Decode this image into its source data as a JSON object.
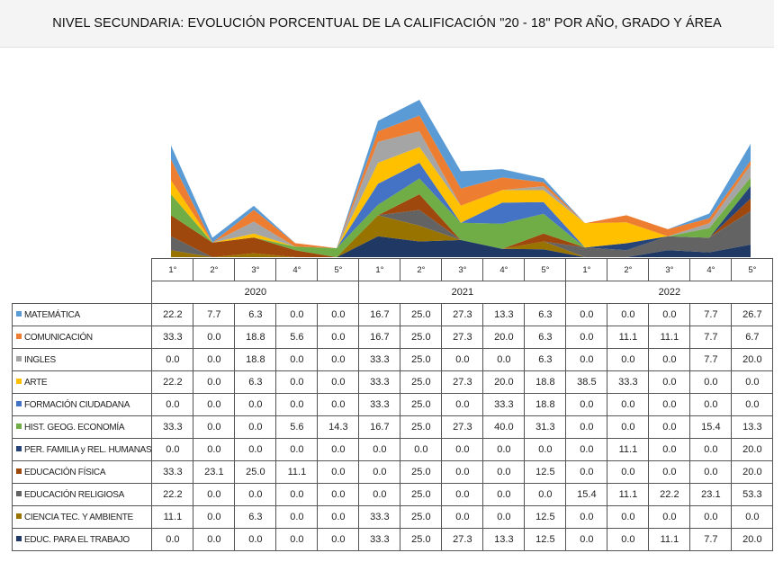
{
  "title": "NIVEL SECUNDARIA: EVOLUCIÓN PORCENTUAL DE LA CALIFICACIÓN \"20 - 18\" POR AÑO, GRADO Y ÁREA",
  "years": [
    "2020",
    "2021",
    "2022"
  ],
  "grades": [
    "1°",
    "2°",
    "3°",
    "4°",
    "5°"
  ],
  "chart_data": {
    "type": "area",
    "stacked": true,
    "title": "NIVEL SECUNDARIA: EVOLUCIÓN PORCENTUAL DE LA CALIFICACIÓN \"20 - 18\" POR AÑO, GRADO Y ÁREA",
    "categories": [
      "1°",
      "2°",
      "3°",
      "4°",
      "5°",
      "1°",
      "2°",
      "3°",
      "4°",
      "5°",
      "1°",
      "2°",
      "3°",
      "4°",
      "5°"
    ],
    "category_groups": [
      {
        "label": "2020",
        "count": 5
      },
      {
        "label": "2021",
        "count": 5
      },
      {
        "label": "2022",
        "count": 5
      }
    ],
    "axis_visible": false,
    "series": [
      {
        "name": "MATEMÁTICA",
        "color": "#5b9bd5",
        "values": [
          22.2,
          7.7,
          6.3,
          0.0,
          0.0,
          16.7,
          25.0,
          27.3,
          13.3,
          6.3,
          0.0,
          0.0,
          0.0,
          7.7,
          26.7
        ]
      },
      {
        "name": "COMUNICACIÓN",
        "color": "#ed7d31",
        "values": [
          33.3,
          0.0,
          18.8,
          5.6,
          0.0,
          16.7,
          25.0,
          27.3,
          20.0,
          6.3,
          0.0,
          11.1,
          11.1,
          7.7,
          6.7
        ]
      },
      {
        "name": "INGLES",
        "color": "#a5a5a5",
        "values": [
          0.0,
          0.0,
          18.8,
          0.0,
          0.0,
          33.3,
          25.0,
          0.0,
          0.0,
          6.3,
          0.0,
          0.0,
          0.0,
          7.7,
          20.0
        ]
      },
      {
        "name": "ARTE",
        "color": "#ffc000",
        "values": [
          22.2,
          0.0,
          6.3,
          0.0,
          0.0,
          33.3,
          25.0,
          27.3,
          20.0,
          18.8,
          38.5,
          33.3,
          0.0,
          0.0,
          0.0
        ]
      },
      {
        "name": "FORMACIÓN CIUDADANA",
        "color": "#4472c4",
        "values": [
          0.0,
          0.0,
          0.0,
          0.0,
          0.0,
          33.3,
          25.0,
          0.0,
          33.3,
          18.8,
          0.0,
          0.0,
          0.0,
          0.0,
          0.0
        ]
      },
      {
        "name": "HIST. GEOG. ECONOMÍA",
        "color": "#70ad47",
        "values": [
          33.3,
          0.0,
          0.0,
          5.6,
          14.3,
          16.7,
          25.0,
          27.3,
          40.0,
          31.3,
          0.0,
          0.0,
          0.0,
          15.4,
          13.3
        ]
      },
      {
        "name": "PER. FAMILIA y REL. HUMANAS",
        "color": "#264478",
        "values": [
          0.0,
          0.0,
          0.0,
          0.0,
          0.0,
          0.0,
          0.0,
          0.0,
          0.0,
          0.0,
          0.0,
          11.1,
          0.0,
          0.0,
          20.0
        ]
      },
      {
        "name": "EDUCACIÓN FÍSICA",
        "color": "#9e480e",
        "values": [
          33.3,
          23.1,
          25.0,
          11.1,
          0.0,
          0.0,
          25.0,
          0.0,
          0.0,
          12.5,
          0.0,
          0.0,
          0.0,
          0.0,
          20.0
        ]
      },
      {
        "name": "EDUCACIÓN RELIGIOSA",
        "color": "#636363",
        "values": [
          22.2,
          0.0,
          0.0,
          0.0,
          0.0,
          0.0,
          25.0,
          0.0,
          0.0,
          0.0,
          15.4,
          11.1,
          22.2,
          23.1,
          53.3
        ]
      },
      {
        "name": "CIENCIA TEC. Y AMBIENTE",
        "color": "#997300",
        "values": [
          11.1,
          0.0,
          6.3,
          0.0,
          0.0,
          33.3,
          25.0,
          0.0,
          0.0,
          12.5,
          0.0,
          0.0,
          0.0,
          0.0,
          0.0
        ]
      },
      {
        "name": "EDUC. PARA EL TRABAJO",
        "color": "#1f3864",
        "values": [
          0.0,
          0.0,
          0.0,
          0.0,
          0.0,
          33.3,
          25.0,
          27.3,
          13.3,
          12.5,
          0.0,
          0.0,
          11.1,
          7.7,
          20.0
        ]
      }
    ]
  }
}
